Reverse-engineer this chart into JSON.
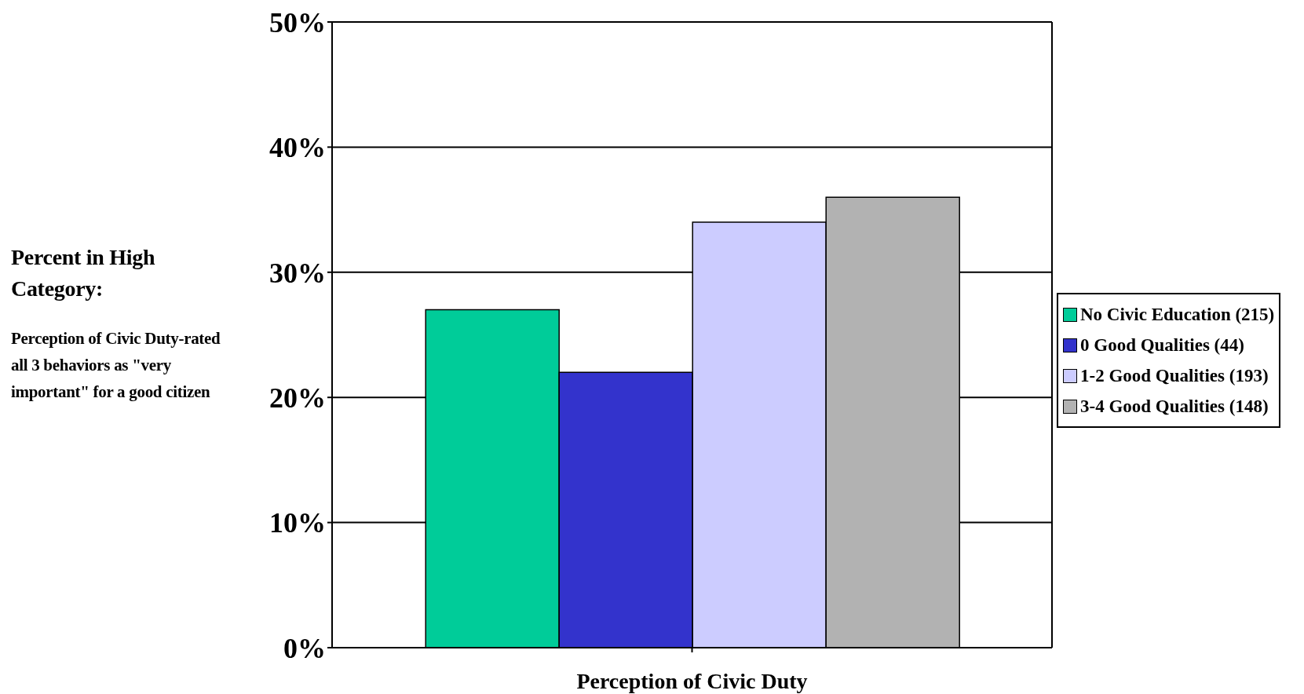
{
  "chart_data": {
    "type": "bar",
    "xlabel": "Perception of Civic Duty",
    "annotations": [
      "Percent in High Category:",
      "Perception of Civic Duty-rated all 3 behaviors as \"very important\" for a good citizen"
    ],
    "categories": [
      null
    ],
    "series": [
      {
        "name": "No Civic Education (215)",
        "color": "#00cc99",
        "values": [
          27
        ]
      },
      {
        "name": "0 Good Qualities (44)",
        "color": "#3333cc",
        "values": [
          22
        ]
      },
      {
        "name": "1-2 Good Qualities (193)",
        "color": "#ccccff",
        "values": [
          34
        ]
      },
      {
        "name": "3-4 Good Qualities (148)",
        "color": "#b2b2b2",
        "values": [
          36
        ]
      }
    ],
    "ylim": [
      0,
      50
    ],
    "yticks": [
      {
        "value": 0,
        "label": "0%"
      },
      {
        "value": 10,
        "label": "10%"
      },
      {
        "value": 20,
        "label": "20%"
      },
      {
        "value": 30,
        "label": "30%"
      },
      {
        "value": 40,
        "label": "40%"
      },
      {
        "value": 50,
        "label": "50%"
      }
    ],
    "grid": "y",
    "legend": "right"
  }
}
